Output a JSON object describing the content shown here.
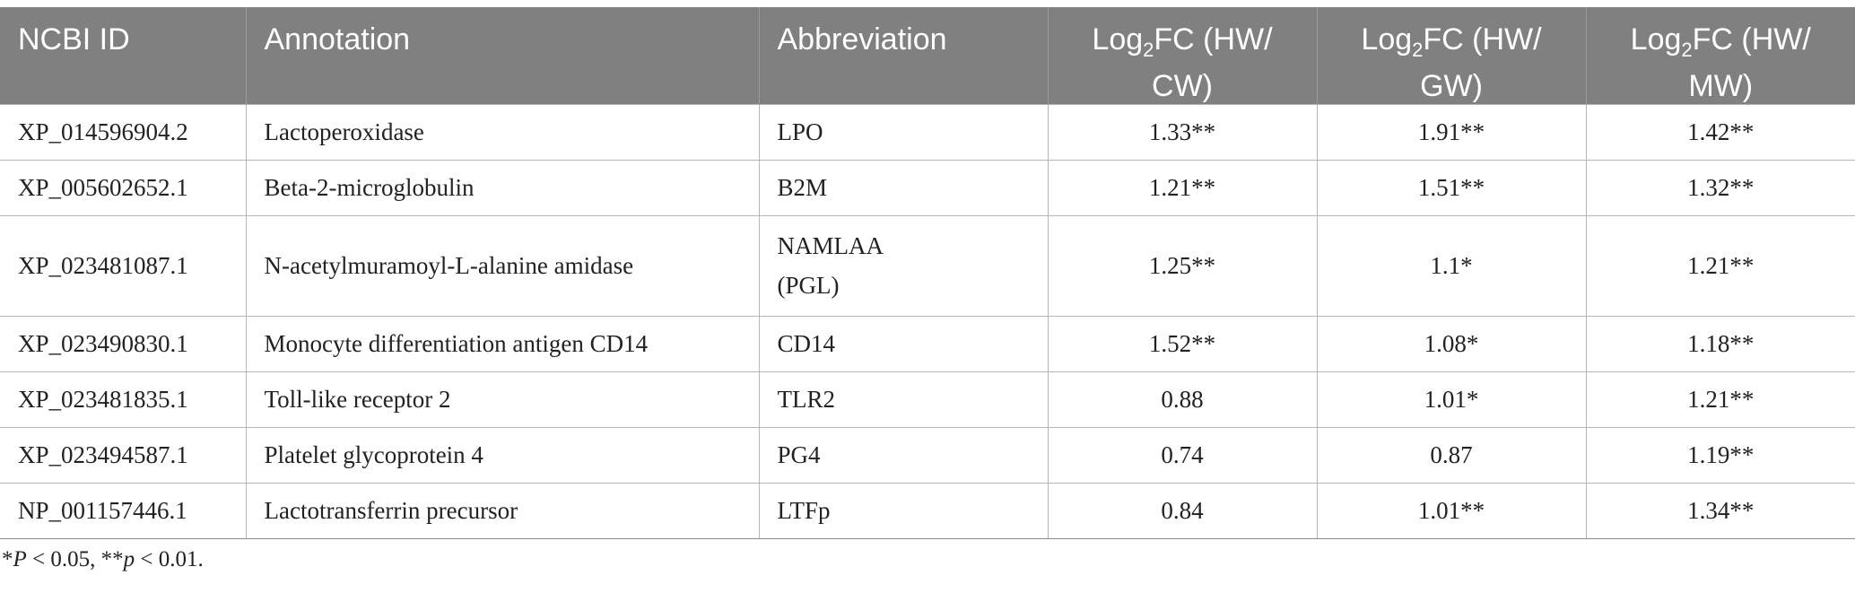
{
  "table": {
    "headers": {
      "ncbi_id": "NCBI ID",
      "annotation": "Annotation",
      "abbreviation": "Abbreviation",
      "log_prefix": "Log",
      "log_sub": "2",
      "fc_cw_line1": "FC (HW/",
      "fc_cw_line2": "CW)",
      "fc_gw_line1": "FC (HW/",
      "fc_gw_line2": "GW)",
      "fc_mw_line1": "FC (HW/",
      "fc_mw_line2": "MW)"
    },
    "rows": [
      {
        "id": "XP_014596904.2",
        "annotation": "Lactoperoxidase",
        "abbr": "LPO",
        "abbr2": "",
        "cw": "1.33**",
        "gw": "1.91**",
        "mw": "1.42**"
      },
      {
        "id": "XP_005602652.1",
        "annotation": "Beta-2-microglobulin",
        "abbr": "B2M",
        "abbr2": "",
        "cw": "1.21**",
        "gw": "1.51**",
        "mw": "1.32**"
      },
      {
        "id": "XP_023481087.1",
        "annotation": "N-acetylmuramoyl-L-alanine amidase",
        "abbr": "NAMLAA",
        "abbr2": "(PGL)",
        "cw": "1.25**",
        "gw": "1.1*",
        "mw": "1.21**"
      },
      {
        "id": "XP_023490830.1",
        "annotation": "Monocyte differentiation antigen CD14",
        "abbr": "CD14",
        "abbr2": "",
        "cw": "1.52**",
        "gw": "1.08*",
        "mw": "1.18**"
      },
      {
        "id": "XP_023481835.1",
        "annotation": "Toll-like receptor 2",
        "abbr": "TLR2",
        "abbr2": "",
        "cw": "0.88",
        "gw": "1.01*",
        "mw": "1.21**"
      },
      {
        "id": "XP_023494587.1",
        "annotation": "Platelet glycoprotein 4",
        "abbr": "PG4",
        "abbr2": "",
        "cw": "0.74",
        "gw": "0.87",
        "mw": "1.19**"
      },
      {
        "id": "NP_001157446.1",
        "annotation": "Lactotransferrin precursor",
        "abbr": "LTFp",
        "abbr2": "",
        "cw": "0.84",
        "gw": "1.01**",
        "mw": "1.34**"
      }
    ]
  },
  "footnote": {
    "p1_sym": "*",
    "p1_var": "P",
    "p1_rest": " < 0.05, **",
    "p2_var": "p",
    "p2_rest": " < 0.01."
  }
}
